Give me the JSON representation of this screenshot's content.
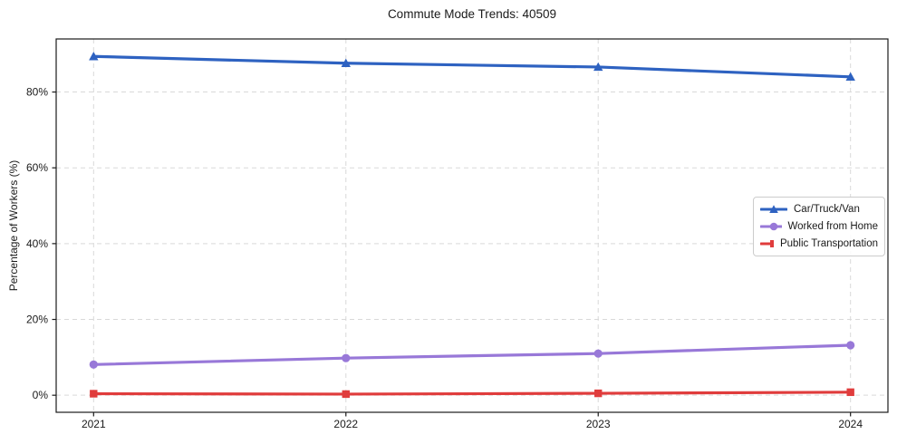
{
  "chart_data": {
    "type": "line",
    "title": "Commute Mode Trends: 40509",
    "xlabel": "",
    "ylabel": "Percentage of Workers (%)",
    "x": [
      2021,
      2022,
      2023,
      2024
    ],
    "series": [
      {
        "name": "Car/Truck/Van",
        "values": [
          89.4,
          87.6,
          86.6,
          84.0
        ],
        "color": "#2e62c1",
        "marker": "triangle"
      },
      {
        "name": "Worked from Home",
        "values": [
          8.1,
          9.8,
          11.0,
          13.2
        ],
        "color": "#9878d8",
        "marker": "circle"
      },
      {
        "name": "Public Transportation",
        "values": [
          0.4,
          0.3,
          0.5,
          0.8
        ],
        "color": "#e03c3c",
        "marker": "square"
      }
    ],
    "yticks": [
      0,
      20,
      40,
      60,
      80
    ],
    "ytick_labels": [
      "0%",
      "20%",
      "40%",
      "60%",
      "80%"
    ],
    "ylim": [
      -4.5,
      94
    ],
    "grid": true,
    "grid_style": "dashed",
    "legend_position": "right-center",
    "colors": {
      "background": "#ffffff",
      "axis": "#1a1a1a",
      "grid": "#d9d9d9",
      "text": "#1a1a1a"
    }
  }
}
